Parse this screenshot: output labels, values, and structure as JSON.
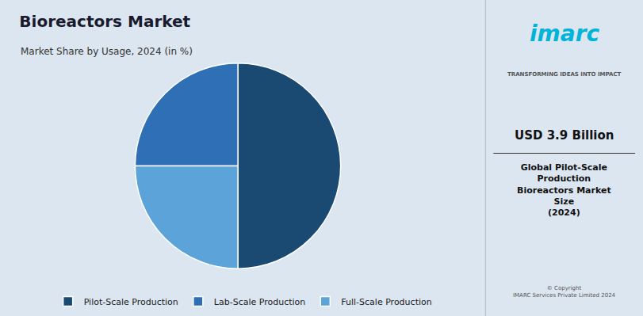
{
  "chart_data": {
    "type": "pie",
    "title": "Bioreactors Market",
    "subtitle": "Market Share by Usage, 2024 (in %)",
    "categories": [
      "Pilot-Scale Production",
      "Lab-Scale Production",
      "Full-Scale Production"
    ],
    "values": [
      50,
      25,
      25
    ],
    "colors": [
      "#1a4a72",
      "#2e6fb5",
      "#5ba3d9"
    ],
    "legend": "bottom",
    "data_labels": false,
    "annotations": [
      "imarc",
      "TRANSFORMING IDEAS INTO IMPACT",
      "USD 3.9 Billion",
      "Global Pilot-Scale\nProduction\nBioreactors Market\nSize\n(2024)",
      "© Copyright\nIMARC Services Private Limited 2024"
    ]
  }
}
